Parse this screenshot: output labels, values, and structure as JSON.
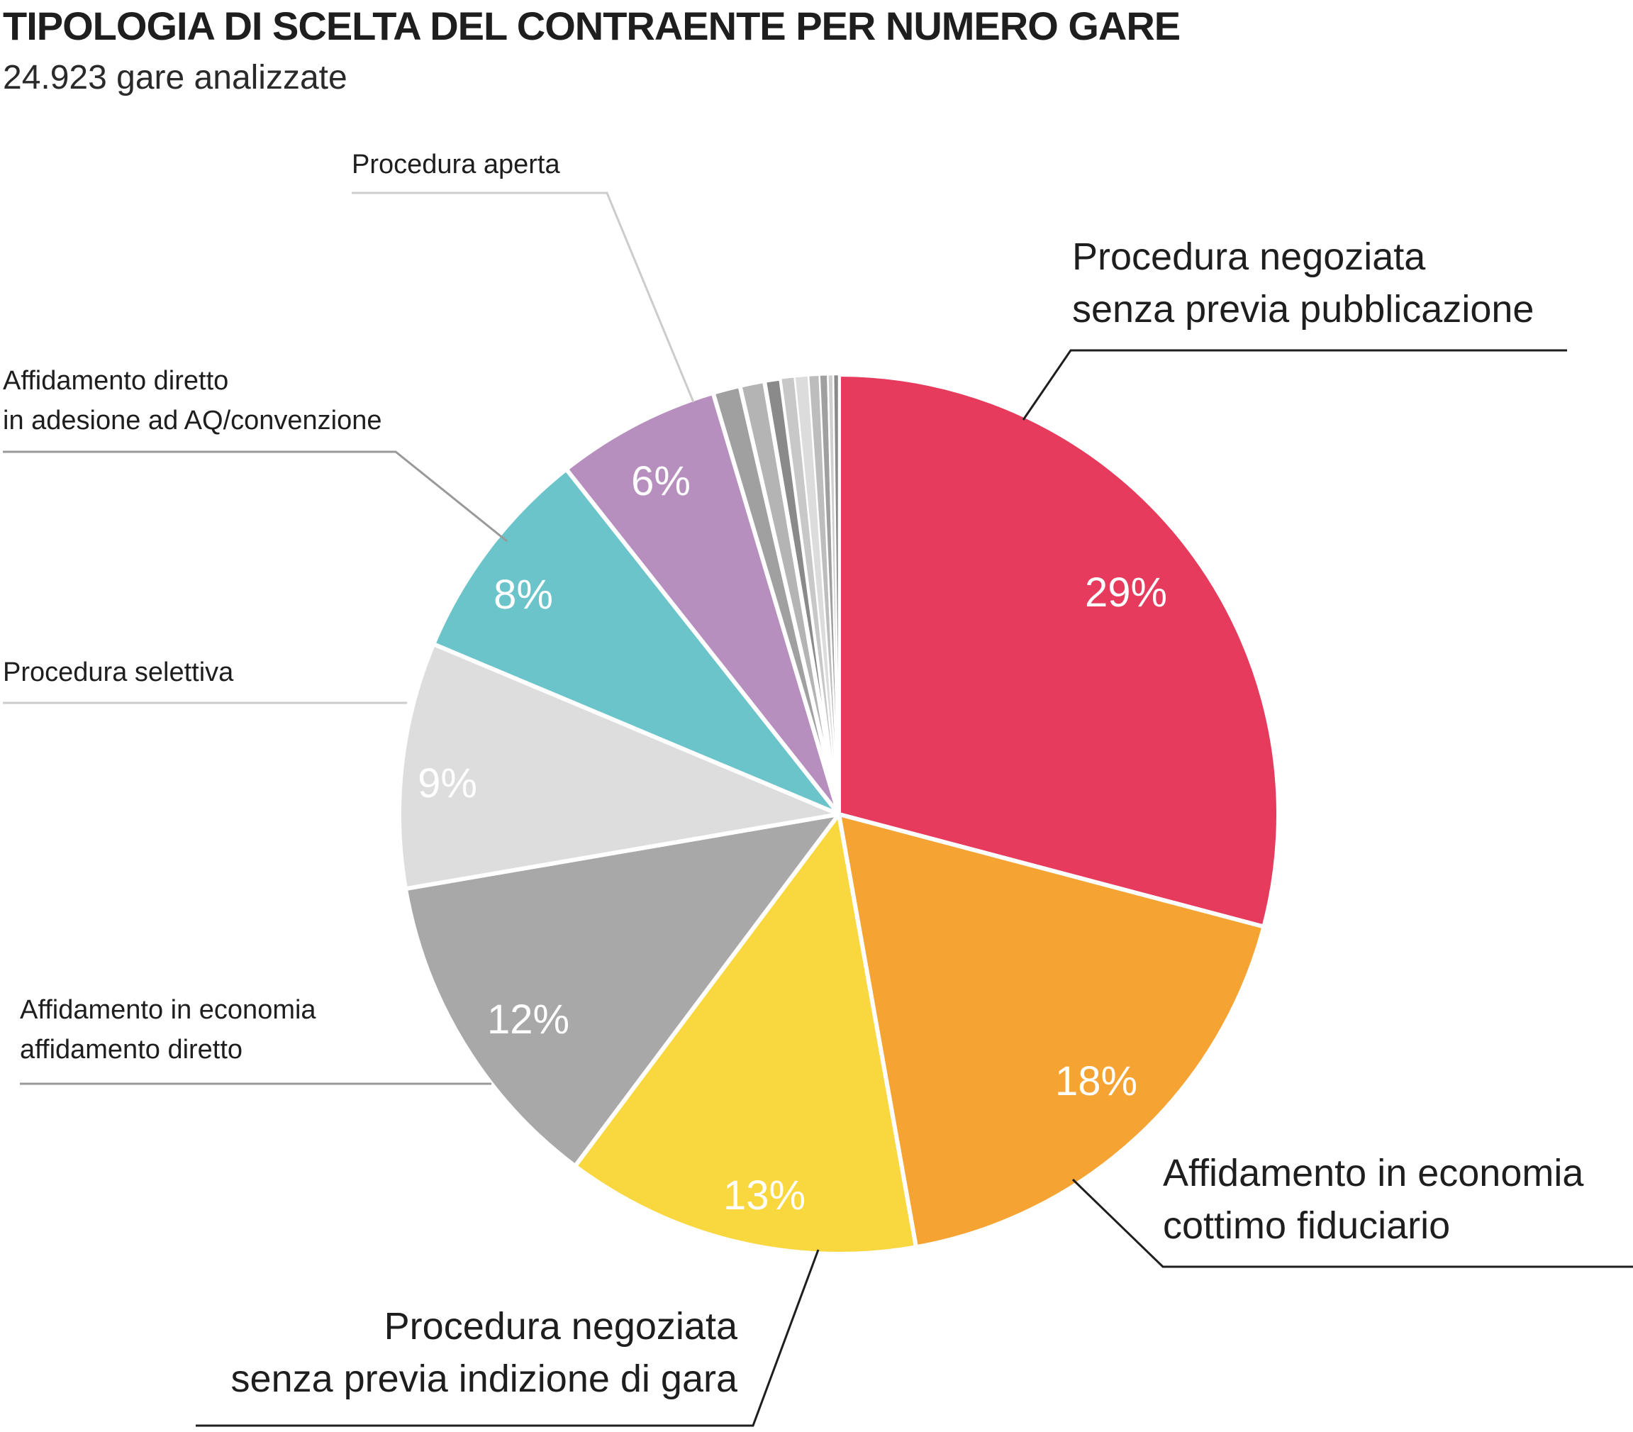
{
  "header": {
    "title": "TIPOLOGIA DI SCELTA DEL CONTRAENTE PER NUMERO GARE",
    "subtitle": "24.923 gare analizzate"
  },
  "chart_data": {
    "type": "pie",
    "title": "TIPOLOGIA DI SCELTA DEL CONTRAENTE PER NUMERO GARE",
    "subtitle": "24.923 gare analizzate",
    "unit": "%",
    "slices": [
      {
        "label": [
          "Procedura negoziata",
          "senza previa pubblicazione"
        ],
        "value": 29,
        "value_label": "29%",
        "color": "#e63b5c"
      },
      {
        "label": [
          "Affidamento in economia",
          "cottimo fiduciario"
        ],
        "value": 18,
        "value_label": "18%",
        "color": "#f5a433"
      },
      {
        "label": [
          "Procedura negoziata",
          "senza previa indizione di gara"
        ],
        "value": 13,
        "value_label": "13%",
        "color": "#f9d73f"
      },
      {
        "label": [
          "Affidamento in economia",
          "affidamento diretto"
        ],
        "value": 12,
        "value_label": "12%",
        "color": "#a8a8a8"
      },
      {
        "label": [
          "Procedura selettiva"
        ],
        "value": 9,
        "value_label": "9%",
        "color": "#dddddd"
      },
      {
        "label": [
          "Affidamento diretto",
          "in adesione ad AQ/convenzione"
        ],
        "value": 8,
        "value_label": "8%",
        "color": "#6cc4cb"
      },
      {
        "label": [
          "Procedura aperta"
        ],
        "value": 6,
        "value_label": "6%",
        "color": "#b78fbf"
      },
      {
        "label": [],
        "value": 1.0,
        "value_label": "",
        "color": "#a0a0a0"
      },
      {
        "label": [],
        "value": 0.9,
        "value_label": "",
        "color": "#b4b4b4"
      },
      {
        "label": [],
        "value": 0.6,
        "value_label": "",
        "color": "#8a8a8a"
      },
      {
        "label": [],
        "value": 0.5,
        "value_label": "",
        "color": "#c8c8c8"
      },
      {
        "label": [],
        "value": 0.5,
        "value_label": "",
        "color": "#dcdcdc"
      },
      {
        "label": [],
        "value": 0.4,
        "value_label": "",
        "color": "#bdbdbd"
      },
      {
        "label": [],
        "value": 0.3,
        "value_label": "",
        "color": "#a0a0a0"
      },
      {
        "label": [],
        "value": 0.2,
        "value_label": "",
        "color": "#cfcfcf"
      },
      {
        "label": [],
        "value": 0.2,
        "value_label": "",
        "color": "#8a8a8a"
      }
    ]
  }
}
